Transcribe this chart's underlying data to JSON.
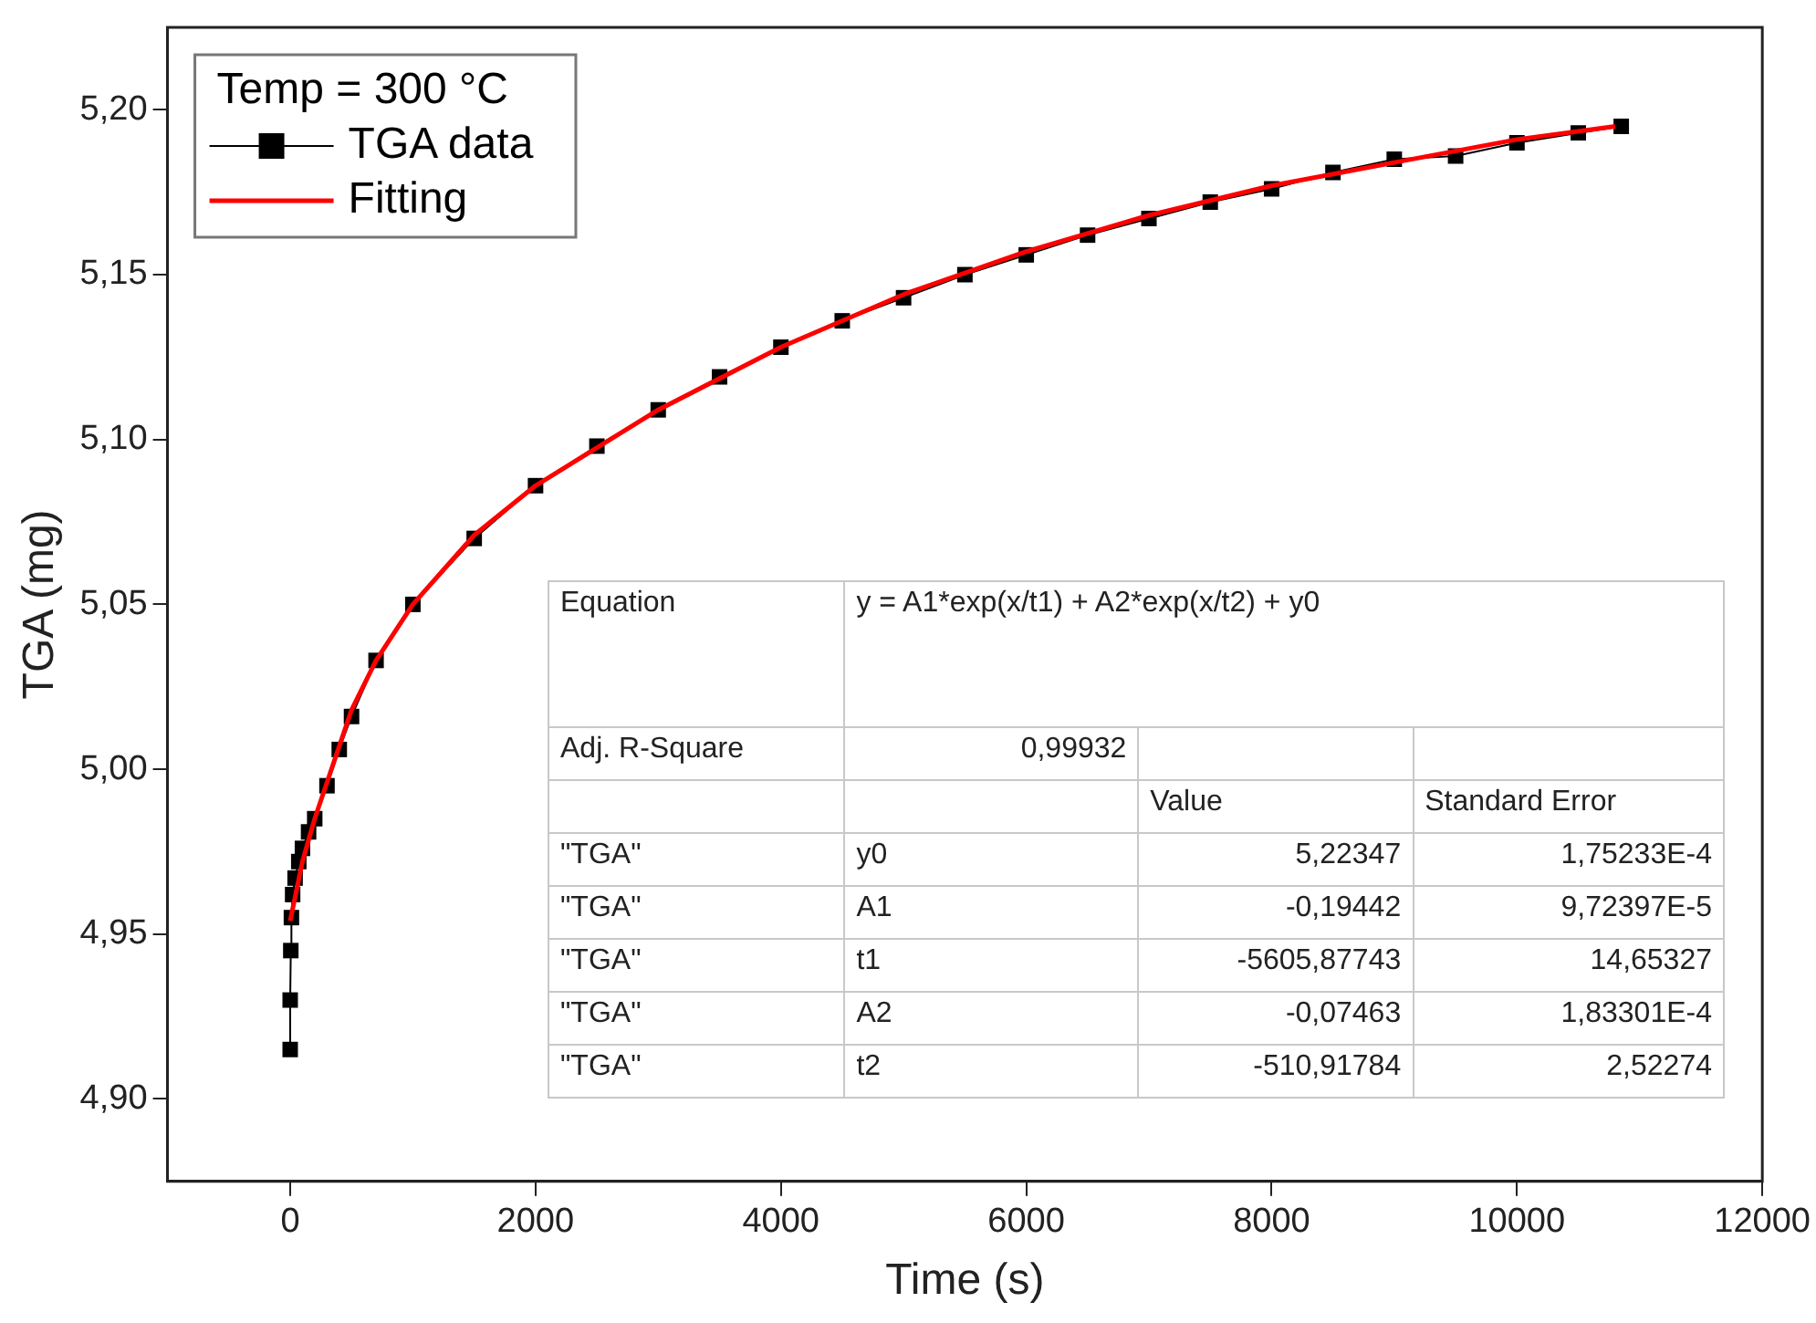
{
  "chart_data": {
    "type": "line",
    "xlabel": "Time (s)",
    "ylabel": "TGA (mg)",
    "legend_title": "Temp = 300 °C",
    "legend": "top left",
    "grid": false,
    "xlim": [
      -1000,
      12000
    ],
    "xticks": [
      0,
      2000,
      4000,
      6000,
      8000,
      10000,
      12000
    ],
    "ylim": [
      4.875,
      5.225
    ],
    "yticks": [
      {
        "value": 4.9,
        "label": "4,90"
      },
      {
        "value": 4.95,
        "label": "4,95"
      },
      {
        "value": 5.0,
        "label": "5,00"
      },
      {
        "value": 5.05,
        "label": "5,05"
      },
      {
        "value": 5.1,
        "label": "5,10"
      },
      {
        "value": 5.15,
        "label": "5,15"
      },
      {
        "value": 5.2,
        "label": "5,20"
      }
    ],
    "series": [
      {
        "name": "TGA data",
        "color": "#000000",
        "marker": "square",
        "x": [
          0,
          0,
          5,
          10,
          20,
          40,
          70,
          100,
          150,
          200,
          300,
          400,
          500,
          700,
          1000,
          1500,
          2000,
          2500,
          3000,
          3500,
          4000,
          4500,
          5000,
          5500,
          6000,
          6500,
          7000,
          7500,
          8000,
          8500,
          9000,
          9500,
          10000,
          10500,
          10850
        ],
        "values": [
          4.915,
          4.93,
          4.945,
          4.955,
          4.962,
          4.967,
          4.972,
          4.976,
          4.981,
          4.985,
          4.995,
          5.006,
          5.016,
          5.033,
          5.05,
          5.07,
          5.086,
          5.098,
          5.109,
          5.119,
          5.128,
          5.136,
          5.143,
          5.15,
          5.156,
          5.162,
          5.167,
          5.172,
          5.176,
          5.181,
          5.185,
          5.186,
          5.19,
          5.193,
          5.195
        ]
      },
      {
        "name": "Fitting",
        "color": "#ff0000",
        "marker": "none",
        "x": [
          0,
          100,
          200,
          300,
          500,
          700,
          1000,
          1500,
          2000,
          3000,
          4000,
          5000,
          6000,
          7000,
          8000,
          9000,
          10000,
          10800
        ],
        "values": [
          4.954,
          4.972,
          4.985,
          4.996,
          5.018,
          5.033,
          5.05,
          5.071,
          5.086,
          5.109,
          5.128,
          5.144,
          5.157,
          5.168,
          5.177,
          5.184,
          5.191,
          5.195
        ]
      }
    ],
    "annotations": [
      "Equation",
      "y = A1*exp(x/t1) + A2*exp(x/t2) + y0",
      "Adj. R-Square",
      "0,99932",
      "Value",
      "Standard Error",
      "\"TGA\"",
      "y0",
      "5,22347",
      "1,75233E-4",
      "\"TGA\"",
      "A1",
      "-0,19442",
      "9,72397E-5",
      "\"TGA\"",
      "t1",
      "-5605,87743",
      "14,65327",
      "\"TGA\"",
      "A2",
      "-0,07463",
      "1,83301E-4",
      "\"TGA\"",
      "t2",
      "-510,91784",
      "2,52274"
    ]
  }
}
